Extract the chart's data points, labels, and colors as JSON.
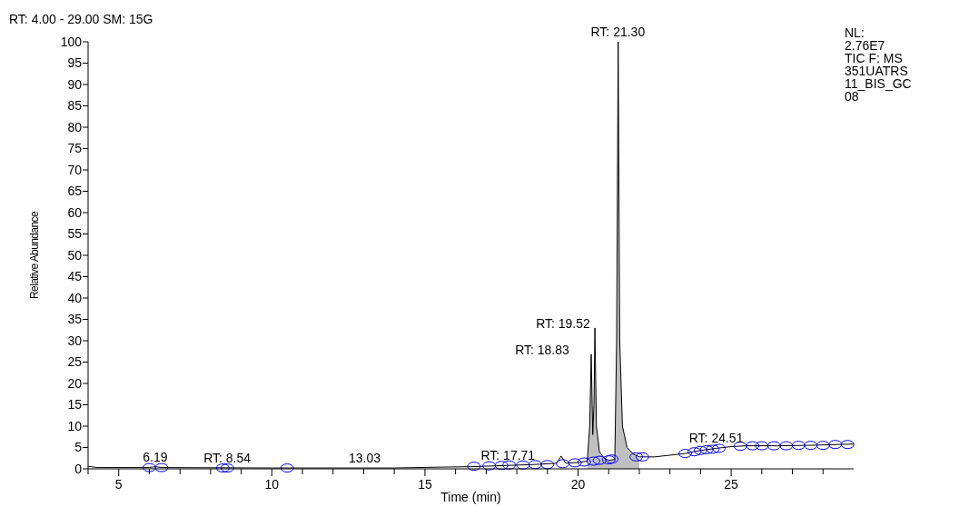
{
  "chart_data": {
    "type": "line",
    "xlabel": "Time (min)",
    "ylabel": "Relative Abundance",
    "xlim": [
      4,
      29
    ],
    "ylim": [
      0,
      100
    ],
    "xticks": [
      {
        "value": 4,
        "label": null
      },
      5,
      {
        "value": 6,
        "label": null
      },
      {
        "value": 7,
        "label": null
      },
      {
        "value": 8,
        "label": null
      },
      {
        "value": 9,
        "label": null
      },
      10,
      {
        "value": 11,
        "label": null
      },
      {
        "value": 12,
        "label": null
      },
      {
        "value": 13,
        "label": null
      },
      {
        "value": 14,
        "label": null
      },
      15,
      {
        "value": 16,
        "label": null
      },
      {
        "value": 17,
        "label": null
      },
      {
        "value": 18,
        "label": null
      },
      {
        "value": 19,
        "label": null
      },
      20,
      {
        "value": 21,
        "label": null
      },
      {
        "value": 22,
        "label": null
      },
      {
        "value": 23,
        "label": null
      },
      {
        "value": 24,
        "label": null
      },
      25,
      {
        "value": 26,
        "label": null
      },
      {
        "value": 27,
        "label": null
      },
      {
        "value": 28,
        "label": null
      }
    ],
    "yticks": [
      0,
      5,
      10,
      15,
      20,
      25,
      30,
      35,
      40,
      45,
      50,
      55,
      60,
      65,
      70,
      75,
      80,
      85,
      90,
      95,
      100
    ],
    "grid": false,
    "series": [
      {
        "type": "area",
        "color": "#c0c0c0",
        "x": [
          20.3,
          20.38,
          20.43,
          20.48,
          20.52,
          20.55,
          20.6,
          20.7,
          20.75,
          20.85,
          21.0,
          21.2,
          21.26,
          21.31,
          21.36,
          21.45,
          21.6,
          21.8,
          22.0
        ],
        "values": [
          1.8,
          10,
          26.8,
          8,
          15,
          33,
          10,
          4,
          3.5,
          2.5,
          2.0,
          2.2,
          30,
          100,
          30,
          10,
          5,
          3.5,
          2.8
        ]
      },
      {
        "color": "#000000",
        "marker": "none",
        "x": [
          4.0,
          4.3,
          6.0,
          6.2,
          6.4,
          10,
          14,
          15.5,
          16.5,
          17.7,
          18.5,
          19.3,
          19.45,
          19.6,
          20.0,
          20.3,
          20.38,
          20.43,
          20.48,
          20.52,
          20.55,
          20.6,
          20.7,
          20.75,
          20.85,
          21.0,
          21.2,
          21.26,
          21.31,
          21.36,
          21.45,
          21.6,
          21.8,
          22.0,
          22.5,
          23.5,
          24.0,
          24.5,
          25.0,
          25.5,
          26.5,
          27.5,
          28.5,
          29
        ],
        "values": [
          0.6,
          0.3,
          0.3,
          0.5,
          0.3,
          0.2,
          0.2,
          0.4,
          0.5,
          0.8,
          1.0,
          1.3,
          3.0,
          1.3,
          1.5,
          1.8,
          10,
          26.8,
          8,
          15,
          33,
          10,
          4,
          3.5,
          2.5,
          2.0,
          2.2,
          30,
          100,
          30,
          10,
          5,
          3.5,
          2.8,
          2.8,
          3.6,
          4.3,
          4.8,
          5.2,
          5.4,
          5.4,
          5.5,
          5.7,
          5.8
        ]
      },
      {
        "type": "scatter",
        "color": "#0000ff",
        "marker": "circle",
        "x": [
          6.0,
          6.4,
          8.4,
          8.55,
          10.5,
          16.6,
          17.1,
          17.5,
          17.75,
          18.2,
          18.6,
          19.0,
          19.5,
          19.9,
          20.2,
          20.5,
          20.7,
          21.0,
          21.1,
          21.9,
          22.1,
          23.5,
          23.8,
          24.0,
          24.2,
          24.4,
          24.6,
          25.3,
          25.7,
          26.0,
          26.4,
          26.8,
          27.2,
          27.6,
          28.0,
          28.4,
          28.8
        ],
        "values": [
          0.3,
          0.3,
          0.2,
          0.2,
          0.2,
          0.6,
          0.7,
          0.8,
          0.9,
          0.9,
          1.0,
          1.0,
          1.2,
          1.4,
          1.6,
          1.8,
          2.0,
          2.1,
          2.3,
          2.8,
          2.8,
          3.6,
          4.0,
          4.3,
          4.5,
          4.6,
          4.8,
          5.3,
          5.4,
          5.4,
          5.4,
          5.4,
          5.5,
          5.5,
          5.5,
          5.7,
          5.7
        ]
      }
    ],
    "annotations": [
      {
        "text": "6.19",
        "x": 6.19,
        "y": 0.5
      },
      {
        "text": "RT: 8.54",
        "x": 8.54,
        "y": 0.2
      },
      {
        "text": "13.03",
        "x": 13.03,
        "y": 0.2
      },
      {
        "text": "RT: 17.71",
        "x": 17.71,
        "y": 0.8
      },
      {
        "text": "RT: 21.30",
        "x": 21.3,
        "y": 100
      },
      {
        "text": "RT: 24.51",
        "x": 24.51,
        "y": 4.8
      },
      "RT: 18.83",
      "RT: 19.52",
      "RT: 4.00 - 29.00   SM: 15G",
      "NL:\n2.76E7\nTIC F:   MS\n351UATRS\n11_BIS_GC\n08"
    ]
  }
}
